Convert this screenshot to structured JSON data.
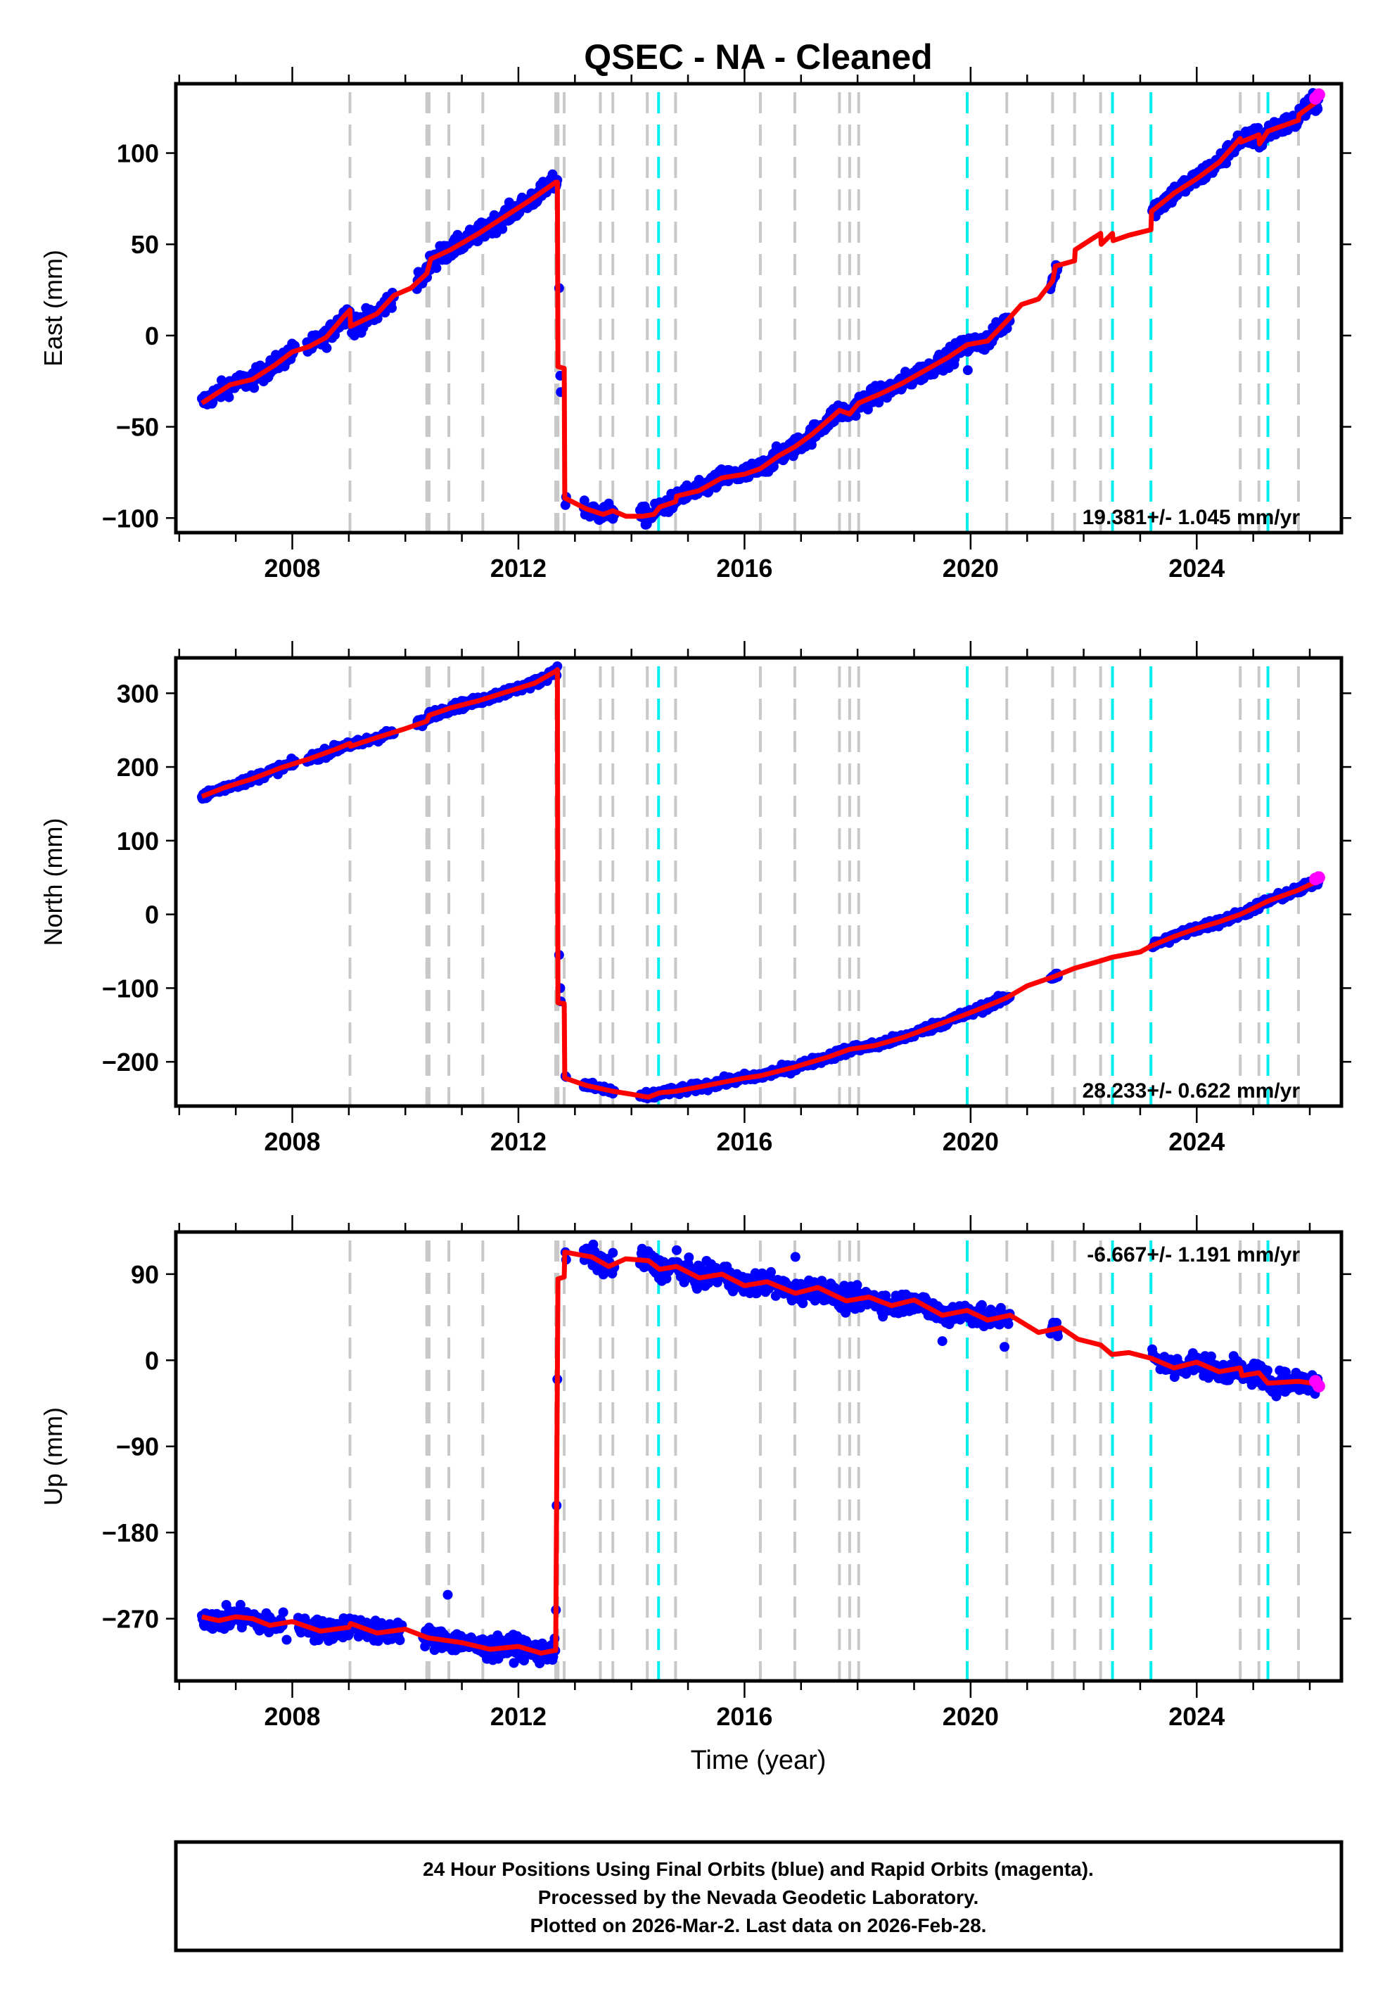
{
  "chart_data": {
    "type": "scatter",
    "title": "QSEC  - NA - Cleaned",
    "xlabel": "Time (year)",
    "xlim": [
      2005.94,
      2026.56
    ],
    "x_ticks_major": [
      2008,
      2012,
      2016,
      2020,
      2024
    ],
    "x_ticks_minor_step": 1,
    "grid": false,
    "colors": {
      "final_orbits": "#0000ff",
      "rapid_orbits": "#ff00ff",
      "model": "#ff0000",
      "equipment_change": "#c8c8c8",
      "earthquake": "#00eeee",
      "axes": "#000000"
    },
    "event_lines": {
      "equipment_change": [
        2009.02,
        2010.38,
        2010.42,
        2010.77,
        2011.37,
        2012.66,
        2012.7,
        2012.81,
        2013.45,
        2013.67,
        2014.28,
        2014.78,
        2016.28,
        2016.89,
        2017.68,
        2017.86,
        2018.02,
        2020.64,
        2021.45,
        2021.84,
        2022.3,
        2024.77,
        2025.1,
        2025.8
      ],
      "earthquake": [
        2014.48,
        2019.94,
        2022.51,
        2023.19,
        2025.26
      ]
    },
    "panels": [
      {
        "name": "east",
        "ylabel": "East (mm)",
        "ylim": [
          -108,
          138
        ],
        "y_ticks": [
          -100,
          -50,
          0,
          50,
          100
        ],
        "y_tick_labels": [
          "−100",
          "−50",
          "0",
          "50",
          "100"
        ],
        "rate_label": "19.381+/- 1.045 mm/yr",
        "rate_position": "bottom-right",
        "model": [
          [
            2006.4,
            -37
          ],
          [
            2006.9,
            -27
          ],
          [
            2007.3,
            -24
          ],
          [
            2007.7,
            -16
          ],
          [
            2008.0,
            -9
          ],
          [
            2008.3,
            -6
          ],
          [
            2008.6,
            -1
          ],
          [
            2008.9,
            10
          ],
          [
            2009.02,
            14
          ],
          [
            2009.03,
            5
          ],
          [
            2009.5,
            12
          ],
          [
            2009.8,
            22
          ],
          [
            2010.1,
            26
          ],
          [
            2010.38,
            34
          ],
          [
            2010.45,
            42
          ],
          [
            2010.8,
            47
          ],
          [
            2011.3,
            56
          ],
          [
            2011.8,
            66
          ],
          [
            2012.2,
            74
          ],
          [
            2012.66,
            84
          ],
          [
            2012.69,
            84
          ],
          [
            2012.7,
            -17
          ],
          [
            2012.81,
            -18
          ],
          [
            2012.82,
            -89
          ],
          [
            2013.2,
            -95
          ],
          [
            2013.5,
            -98
          ],
          [
            2013.67,
            -96
          ],
          [
            2013.9,
            -99
          ],
          [
            2014.2,
            -99
          ],
          [
            2014.4,
            -98
          ],
          [
            2014.5,
            -94
          ],
          [
            2014.78,
            -91
          ],
          [
            2014.8,
            -88
          ],
          [
            2015.2,
            -85
          ],
          [
            2015.6,
            -78
          ],
          [
            2016.0,
            -76
          ],
          [
            2016.28,
            -73
          ],
          [
            2016.6,
            -66
          ],
          [
            2016.89,
            -61
          ],
          [
            2017.2,
            -54
          ],
          [
            2017.5,
            -46
          ],
          [
            2017.68,
            -41
          ],
          [
            2017.86,
            -43
          ],
          [
            2018.02,
            -37
          ],
          [
            2018.4,
            -32
          ],
          [
            2018.8,
            -26
          ],
          [
            2019.2,
            -19
          ],
          [
            2019.6,
            -12
          ],
          [
            2019.94,
            -5
          ],
          [
            2020.3,
            -3
          ],
          [
            2020.64,
            8
          ],
          [
            2020.9,
            17
          ],
          [
            2021.2,
            20
          ],
          [
            2021.45,
            30
          ],
          [
            2021.5,
            38
          ],
          [
            2021.84,
            41
          ],
          [
            2021.85,
            47
          ],
          [
            2022.1,
            52
          ],
          [
            2022.3,
            56
          ],
          [
            2022.31,
            50
          ],
          [
            2022.51,
            56
          ],
          [
            2022.52,
            52
          ],
          [
            2022.8,
            55
          ],
          [
            2023.19,
            58
          ],
          [
            2023.2,
            68
          ],
          [
            2023.6,
            78
          ],
          [
            2024.0,
            86
          ],
          [
            2024.4,
            95
          ],
          [
            2024.77,
            108
          ],
          [
            2024.78,
            106
          ],
          [
            2025.1,
            110
          ],
          [
            2025.11,
            105
          ],
          [
            2025.26,
            112
          ],
          [
            2025.8,
            118
          ],
          [
            2025.81,
            121
          ],
          [
            2026.16,
            129
          ]
        ],
        "scatter_noise_mm": 3.5,
        "data_gaps": [
          [
            2008.05,
            2008.25
          ],
          [
            2009.8,
            2010.2
          ],
          [
            2012.85,
            2013.15
          ],
          [
            2013.7,
            2014.15
          ],
          [
            2020.7,
            2026.55
          ]
        ],
        "data_segments_late": [
          [
            2021.4,
            2021.55
          ],
          [
            2023.2,
            2026.16
          ]
        ],
        "outliers": [
          [
            2010.55,
            37
          ],
          [
            2009.1,
            0
          ],
          [
            2019.95,
            -19
          ],
          [
            2012.72,
            26
          ],
          [
            2012.74,
            -22
          ],
          [
            2012.75,
            -31
          ]
        ],
        "rapid_points": [
          [
            2026.1,
            130
          ],
          [
            2026.16,
            132
          ]
        ]
      },
      {
        "name": "north",
        "ylabel": "North (mm)",
        "ylim": [
          -260,
          348
        ],
        "y_ticks": [
          -200,
          -100,
          0,
          100,
          200,
          300
        ],
        "y_tick_labels": [
          "−200",
          "−100",
          "0",
          "100",
          "200",
          "300"
        ],
        "rate_label": "28.233+/- 0.622 mm/yr",
        "rate_position": "bottom-right",
        "model": [
          [
            2006.4,
            160
          ],
          [
            2006.8,
            172
          ],
          [
            2007.3,
            184
          ],
          [
            2007.8,
            199
          ],
          [
            2008.3,
            211
          ],
          [
            2008.8,
            225
          ],
          [
            2009.02,
            232
          ],
          [
            2009.03,
            228
          ],
          [
            2009.5,
            240
          ],
          [
            2010.0,
            252
          ],
          [
            2010.38,
            262
          ],
          [
            2010.42,
            270
          ],
          [
            2010.8,
            280
          ],
          [
            2011.3,
            290
          ],
          [
            2011.8,
            302
          ],
          [
            2012.3,
            314
          ],
          [
            2012.66,
            330
          ],
          [
            2012.69,
            332
          ],
          [
            2012.7,
            -120
          ],
          [
            2012.81,
            -121
          ],
          [
            2012.82,
            -222
          ],
          [
            2013.2,
            -232
          ],
          [
            2013.67,
            -240
          ],
          [
            2014.0,
            -244
          ],
          [
            2014.3,
            -248
          ],
          [
            2014.5,
            -242
          ],
          [
            2014.78,
            -240
          ],
          [
            2015.2,
            -234
          ],
          [
            2015.6,
            -228
          ],
          [
            2016.0,
            -222
          ],
          [
            2016.28,
            -219
          ],
          [
            2016.89,
            -207
          ],
          [
            2017.5,
            -193
          ],
          [
            2017.86,
            -183
          ],
          [
            2018.3,
            -178
          ],
          [
            2018.8,
            -167
          ],
          [
            2019.3,
            -153
          ],
          [
            2019.94,
            -135
          ],
          [
            2020.3,
            -124
          ],
          [
            2020.64,
            -113
          ],
          [
            2021.0,
            -97
          ],
          [
            2021.45,
            -85
          ],
          [
            2021.84,
            -73
          ],
          [
            2022.3,
            -63
          ],
          [
            2022.51,
            -58
          ],
          [
            2023.0,
            -51
          ],
          [
            2023.19,
            -43
          ],
          [
            2023.6,
            -30
          ],
          [
            2024.0,
            -19
          ],
          [
            2024.4,
            -10
          ],
          [
            2024.77,
            0
          ],
          [
            2025.1,
            12
          ],
          [
            2025.26,
            18
          ],
          [
            2025.8,
            33
          ],
          [
            2026.16,
            46
          ]
        ],
        "scatter_noise_mm": 4,
        "data_gaps": [
          [
            2008.05,
            2008.25
          ],
          [
            2009.8,
            2010.2
          ],
          [
            2012.85,
            2013.15
          ],
          [
            2013.7,
            2014.15
          ],
          [
            2020.7,
            2026.55
          ]
        ],
        "data_segments_late": [
          [
            2021.4,
            2021.55
          ],
          [
            2023.2,
            2026.16
          ]
        ],
        "outliers": [
          [
            2012.72,
            -55
          ],
          [
            2012.74,
            -100
          ],
          [
            2012.75,
            -118
          ]
        ],
        "rapid_points": [
          [
            2026.1,
            48
          ],
          [
            2026.16,
            50
          ]
        ]
      },
      {
        "name": "up",
        "ylabel": "Up (mm)",
        "ylim": [
          -335,
          134
        ],
        "y_ticks": [
          -270,
          -180,
          -90,
          0,
          90
        ],
        "y_tick_labels": [
          "−270",
          "−180",
          "−90",
          "0",
          "90"
        ],
        "rate_label": "-6.667+/- 1.191 mm/yr",
        "rate_position": "top-right",
        "model": [
          [
            2006.4,
            -268
          ],
          [
            2006.7,
            -272
          ],
          [
            2007.0,
            -268
          ],
          [
            2007.3,
            -270
          ],
          [
            2007.6,
            -277
          ],
          [
            2008.0,
            -273
          ],
          [
            2008.5,
            -283
          ],
          [
            2009.0,
            -279
          ],
          [
            2009.03,
            -275
          ],
          [
            2009.5,
            -285
          ],
          [
            2010.0,
            -281
          ],
          [
            2010.4,
            -290
          ],
          [
            2011.0,
            -295
          ],
          [
            2011.5,
            -302
          ],
          [
            2012.0,
            -299
          ],
          [
            2012.4,
            -306
          ],
          [
            2012.66,
            -303
          ],
          [
            2012.7,
            85
          ],
          [
            2012.81,
            87
          ],
          [
            2012.82,
            113
          ],
          [
            2013.3,
            108
          ],
          [
            2013.6,
            98
          ],
          [
            2013.9,
            106
          ],
          [
            2014.3,
            104
          ],
          [
            2014.5,
            95
          ],
          [
            2014.8,
            98
          ],
          [
            2015.2,
            86
          ],
          [
            2015.6,
            90
          ],
          [
            2016.0,
            78
          ],
          [
            2016.4,
            82
          ],
          [
            2016.9,
            70
          ],
          [
            2017.3,
            76
          ],
          [
            2017.8,
            62
          ],
          [
            2018.2,
            66
          ],
          [
            2018.6,
            57
          ],
          [
            2019.0,
            63
          ],
          [
            2019.5,
            47
          ],
          [
            2019.94,
            52
          ],
          [
            2020.3,
            42
          ],
          [
            2020.7,
            47
          ],
          [
            2021.2,
            29
          ],
          [
            2021.6,
            34
          ],
          [
            2021.9,
            22
          ],
          [
            2022.3,
            16
          ],
          [
            2022.5,
            6
          ],
          [
            2022.8,
            8
          ],
          [
            2023.2,
            2
          ],
          [
            2023.6,
            -8
          ],
          [
            2024.0,
            -2
          ],
          [
            2024.4,
            -12
          ],
          [
            2024.77,
            -8
          ],
          [
            2024.8,
            -16
          ],
          [
            2025.1,
            -13
          ],
          [
            2025.26,
            -24
          ],
          [
            2025.8,
            -22
          ],
          [
            2026.16,
            -25
          ]
        ],
        "scatter_noise_mm": 8,
        "data_gaps": [
          [
            2007.85,
            2008.1
          ],
          [
            2009.95,
            2010.3
          ],
          [
            2012.85,
            2013.15
          ],
          [
            2013.7,
            2014.15
          ],
          [
            2020.7,
            2026.55
          ]
        ],
        "data_segments_late": [
          [
            2021.4,
            2021.55
          ],
          [
            2023.2,
            2026.16
          ]
        ],
        "outliers": [
          [
            2010.75,
            -245
          ],
          [
            2007.9,
            -292
          ],
          [
            2019.5,
            20
          ],
          [
            2020.6,
            14
          ],
          [
            2016.9,
            108
          ],
          [
            2014.8,
            115
          ]
        ],
        "rapid_points": [
          [
            2026.1,
            -22
          ],
          [
            2026.16,
            -27
          ]
        ]
      }
    ]
  },
  "footer": {
    "lines": [
      "24 Hour Positions Using Final Orbits (blue) and Rapid Orbits (magenta).",
      "Processed by the Nevada Geodetic Laboratory.",
      "Plotted on 2026-Mar-2. Last data on 2026-Feb-28."
    ]
  }
}
